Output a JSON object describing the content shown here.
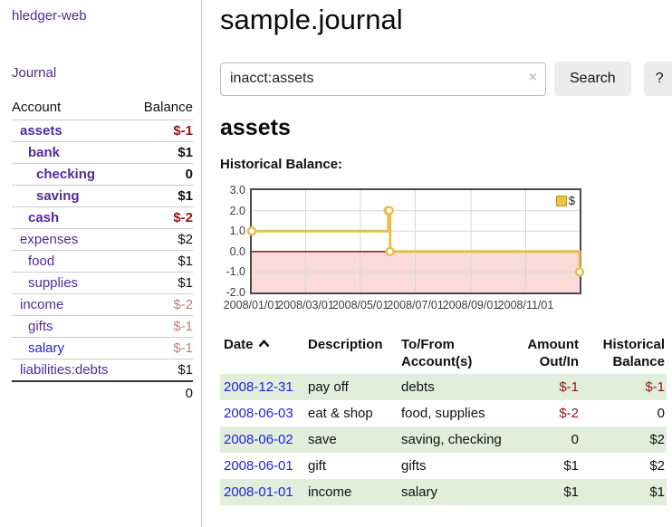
{
  "app": {
    "brand": "hledger-web"
  },
  "colors": {
    "accent_purple": "#552a9b",
    "link_blue": "#2222dd",
    "negative_red": "#941414",
    "negative_faded": "#bf7d7d",
    "row_stripe_green": "#e1eedb",
    "chart_gold": "#e6bf50",
    "negative_region_pink": "#fbdada",
    "zero_line_red": "#8b0000"
  },
  "sidebar": {
    "journal_link": "Journal",
    "accounts": {
      "headers": [
        "Account",
        "Balance"
      ],
      "rows": [
        {
          "name": "assets",
          "balance": "$-1",
          "indent": 0,
          "bold": true,
          "balance_tone": "negative"
        },
        {
          "name": "bank",
          "balance": "$1",
          "indent": 1,
          "bold": true,
          "balance_tone": "normal"
        },
        {
          "name": "checking",
          "balance": "0",
          "indent": 2,
          "bold": true,
          "balance_tone": "normal"
        },
        {
          "name": "saving",
          "balance": "$1",
          "indent": 2,
          "bold": true,
          "balance_tone": "normal"
        },
        {
          "name": "cash",
          "balance": "$-2",
          "indent": 1,
          "bold": true,
          "balance_tone": "negative"
        },
        {
          "name": "expenses",
          "balance": "$2",
          "indent": 0,
          "bold": false,
          "balance_tone": "normal"
        },
        {
          "name": "food",
          "balance": "$1",
          "indent": 1,
          "bold": false,
          "balance_tone": "normal"
        },
        {
          "name": "supplies",
          "balance": "$1",
          "indent": 1,
          "bold": false,
          "balance_tone": "normal"
        },
        {
          "name": "income",
          "balance": "$-2",
          "indent": 0,
          "bold": false,
          "balance_tone": "negative-faded"
        },
        {
          "name": "gifts",
          "balance": "$-1",
          "indent": 1,
          "bold": false,
          "balance_tone": "negative-faded"
        },
        {
          "name": "salary",
          "balance": "$-1",
          "indent": 1,
          "bold": false,
          "balance_tone": "negative-faded",
          "link_tone": "blue"
        },
        {
          "name": "liabilities:debts",
          "balance": "$1",
          "indent": 0,
          "bold": false,
          "balance_tone": "normal"
        }
      ],
      "total": "0"
    }
  },
  "header": {
    "title": "sample.journal"
  },
  "search": {
    "value": "inacct:assets",
    "clear_icon": "×",
    "button_label": "Search",
    "help_label": "?"
  },
  "account_page": {
    "title": "assets",
    "section_label": "Historical Balance:"
  },
  "chart_data": {
    "type": "line",
    "title": "Historical Balance",
    "step": true,
    "grid": true,
    "legend": [
      {
        "label": "$",
        "color": "#eac63f"
      }
    ],
    "legend_position": "top-right",
    "series": [
      {
        "name": "$",
        "points": [
          [
            "2008-01-01",
            1.0
          ],
          [
            "2008-06-01",
            2.0
          ],
          [
            "2008-06-02",
            2.0
          ],
          [
            "2008-06-03",
            0.0
          ],
          [
            "2008-12-31",
            -1.0
          ]
        ]
      }
    ],
    "x_range": [
      "2008-01-01",
      "2008-12-31"
    ],
    "ylim": [
      -2.0,
      3.0
    ],
    "yticks": [
      "3.0",
      "2.0",
      "1.0",
      "0.0",
      "-1.0",
      "-2.0"
    ],
    "xticks": [
      {
        "date": "2008-01-01",
        "label": "2008/01/01"
      },
      {
        "date": "2008-03-01",
        "label": "2008/03/01"
      },
      {
        "date": "2008-05-01",
        "label": "2008/05/01"
      },
      {
        "date": "2008-07-01",
        "label": "2008/07/01"
      },
      {
        "date": "2008-09-01",
        "label": "2008/09/01"
      },
      {
        "date": "2008-11-01",
        "label": "2008/11/01"
      }
    ],
    "negative_region_color": "#fbdada",
    "zero_line_color": "#8b0000",
    "line_color": "#e6bf50",
    "grid_color": "#d7d7d7"
  },
  "register": {
    "headers": {
      "date": "Date",
      "description": "Description",
      "accounts": "To/From Account(s)",
      "amount": "Amount Out/In",
      "balance": "Historical Balance"
    },
    "sort": {
      "column": "date",
      "icon": "chevron-up"
    },
    "rows": [
      {
        "date": "2008-12-31",
        "description": "pay off",
        "accounts": "debts",
        "amount": "$-1",
        "amount_tone": "negative",
        "balance": "$-1",
        "balance_tone": "negative"
      },
      {
        "date": "2008-06-03",
        "description": "eat & shop",
        "accounts": "food, supplies",
        "amount": "$-2",
        "amount_tone": "negative",
        "balance": "0",
        "balance_tone": "normal"
      },
      {
        "date": "2008-06-02",
        "description": "save",
        "accounts": "saving, checking",
        "amount": "0",
        "amount_tone": "normal",
        "balance": "$2",
        "balance_tone": "normal"
      },
      {
        "date": "2008-06-01",
        "description": "gift",
        "accounts": "gifts",
        "amount": "$1",
        "amount_tone": "normal",
        "balance": "$2",
        "balance_tone": "normal"
      },
      {
        "date": "2008-01-01",
        "description": "income",
        "accounts": "salary",
        "amount": "$1",
        "amount_tone": "normal",
        "balance": "$1",
        "balance_tone": "normal"
      }
    ]
  }
}
